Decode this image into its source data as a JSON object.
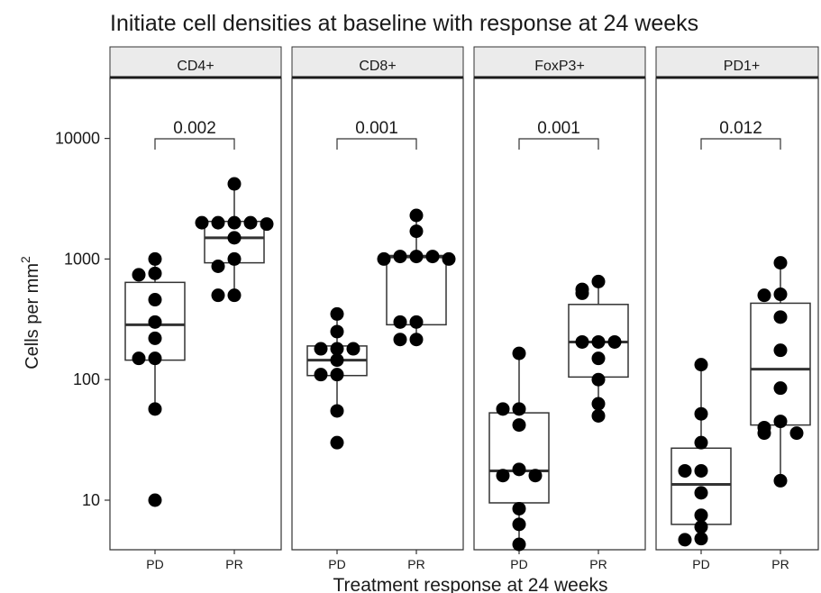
{
  "chart_data": {
    "type": "box",
    "title": "Initiate cell densities at baseline with response at 24 weeks",
    "xlabel": "Treatment response at 24 weeks",
    "ylabel": "Cells per mm",
    "ylabel_superscript": "2",
    "y_scale": "log10",
    "ylim": [
      4,
      32000
    ],
    "y_ticks": [
      10,
      100,
      1000,
      10000
    ],
    "y_tick_labels": [
      "10",
      "100",
      "1000",
      "10000"
    ],
    "categories": [
      "PD",
      "PR"
    ],
    "legend": "none",
    "grid": false,
    "facets": [
      {
        "name": "CD4+",
        "p_value": "0.002",
        "groups": [
          {
            "category": "PD",
            "box": {
              "q1": 145,
              "median": 285,
              "q3": 640,
              "whisker_low": 57,
              "whisker_high": 1000
            },
            "points": [
              1000,
              760,
              740,
              460,
              300,
              220,
              150,
              150,
              57,
              10
            ],
            "outliers": [
              10
            ]
          },
          {
            "category": "PR",
            "box": {
              "q1": 930,
              "median": 1500,
              "q3": 2050,
              "whisker_low": 500,
              "whisker_high": 4200
            },
            "points": [
              4200,
              2000,
              2000,
              2000,
              2000,
              1950,
              1500,
              1000,
              870,
              500,
              500
            ],
            "outliers": []
          }
        ]
      },
      {
        "name": "CD8+",
        "p_value": "0.001",
        "groups": [
          {
            "category": "PD",
            "box": {
              "q1": 108,
              "median": 145,
              "q3": 190,
              "whisker_low": 55,
              "whisker_high": 350
            },
            "points": [
              350,
              250,
              180,
              180,
              180,
              145,
              110,
              110,
              55,
              30
            ],
            "outliers": [
              30
            ]
          },
          {
            "category": "PR",
            "box": {
              "q1": 285,
              "median": 1040,
              "q3": 1070,
              "whisker_low": 210,
              "whisker_high": 2300
            },
            "points": [
              2300,
              1700,
              1050,
              1050,
              1050,
              1000,
              1000,
              300,
              300,
              215,
              215
            ],
            "outliers": []
          }
        ]
      },
      {
        "name": "FoxP3+",
        "p_value": "0.001",
        "groups": [
          {
            "category": "PD",
            "box": {
              "q1": 9.5,
              "median": 17.5,
              "q3": 53,
              "whisker_low": 4.3,
              "whisker_high": 165
            },
            "points": [
              165,
              57,
              57,
              42,
              18,
              16,
              16,
              8.5,
              6.3,
              4.3
            ],
            "outliers": []
          },
          {
            "category": "PR",
            "box": {
              "q1": 105,
              "median": 205,
              "q3": 420,
              "whisker_low": 50,
              "whisker_high": 650
            },
            "points": [
              650,
              560,
              520,
              205,
              205,
              205,
              150,
              100,
              63,
              50
            ],
            "outliers": []
          }
        ]
      },
      {
        "name": "PD1+",
        "p_value": "0.012",
        "groups": [
          {
            "category": "PD",
            "box": {
              "q1": 6.3,
              "median": 13.5,
              "q3": 27,
              "whisker_low": 4.7,
              "whisker_high": 133
            },
            "points": [
              133,
              52,
              30,
              17.5,
              17.5,
              11.5,
              7.5,
              6,
              4.8,
              4.7
            ],
            "outliers": []
          },
          {
            "category": "PR",
            "box": {
              "q1": 42,
              "median": 122,
              "q3": 430,
              "whisker_low": 14.5,
              "whisker_high": 930
            },
            "points": [
              930,
              510,
              500,
              330,
              175,
              85,
              45,
              40,
              36,
              36,
              14.5
            ],
            "outliers": []
          }
        ]
      }
    ]
  }
}
